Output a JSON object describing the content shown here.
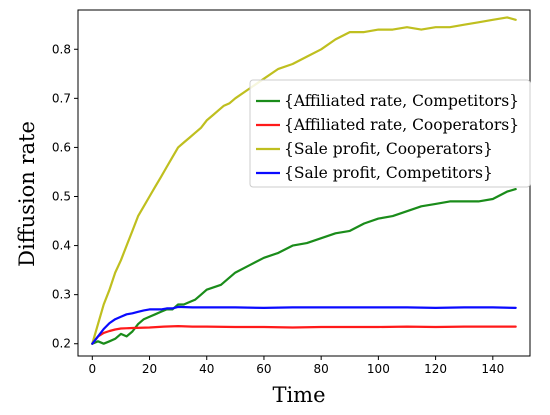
{
  "chart_data": {
    "type": "line",
    "xlabel": "Time",
    "ylabel": "Diffusion rate",
    "xlim": [
      -5,
      153
    ],
    "ylim": [
      0.175,
      0.88
    ],
    "xticks": [
      "0",
      "20",
      "40",
      "60",
      "80",
      "100",
      "120",
      "140"
    ],
    "yticks": [
      "0.2",
      "0.3",
      "0.4",
      "0.5",
      "0.6",
      "0.7",
      "0.8"
    ],
    "grid": false,
    "legend_position": "upper right",
    "series": [
      {
        "name": "{Affiliated rate, Competitors}",
        "color": "#1a8c1a",
        "x": [
          0,
          2,
          4,
          6,
          8,
          10,
          12,
          14,
          16,
          18,
          20,
          22,
          24,
          26,
          28,
          30,
          32,
          34,
          36,
          38,
          40,
          45,
          50,
          55,
          60,
          65,
          70,
          75,
          80,
          85,
          90,
          95,
          100,
          105,
          110,
          115,
          120,
          125,
          130,
          135,
          140,
          145,
          148
        ],
        "y": [
          0.2,
          0.205,
          0.2,
          0.205,
          0.21,
          0.22,
          0.215,
          0.225,
          0.24,
          0.25,
          0.255,
          0.26,
          0.265,
          0.27,
          0.27,
          0.28,
          0.28,
          0.285,
          0.29,
          0.3,
          0.31,
          0.32,
          0.345,
          0.36,
          0.375,
          0.385,
          0.4,
          0.405,
          0.415,
          0.425,
          0.43,
          0.445,
          0.455,
          0.46,
          0.47,
          0.48,
          0.485,
          0.49,
          0.49,
          0.49,
          0.495,
          0.51,
          0.515
        ]
      },
      {
        "name": "{Affiliated rate, Cooperators}",
        "color": "#ff1a1a",
        "x": [
          0,
          2,
          4,
          6,
          8,
          10,
          14,
          20,
          25,
          30,
          35,
          40,
          50,
          60,
          70,
          80,
          90,
          100,
          110,
          120,
          130,
          140,
          148
        ],
        "y": [
          0.2,
          0.215,
          0.222,
          0.226,
          0.229,
          0.231,
          0.232,
          0.233,
          0.235,
          0.236,
          0.235,
          0.235,
          0.234,
          0.234,
          0.233,
          0.234,
          0.234,
          0.234,
          0.235,
          0.234,
          0.235,
          0.235,
          0.235
        ]
      },
      {
        "name": "{Sale profit, Cooperators}",
        "color": "#bfbf1f",
        "x": [
          0,
          2,
          4,
          6,
          8,
          10,
          12,
          14,
          16,
          18,
          20,
          22,
          24,
          26,
          28,
          30,
          32,
          34,
          36,
          38,
          40,
          42,
          44,
          46,
          48,
          50,
          55,
          60,
          65,
          70,
          75,
          80,
          85,
          90,
          95,
          100,
          105,
          110,
          115,
          120,
          125,
          130,
          135,
          140,
          145,
          148
        ],
        "y": [
          0.2,
          0.24,
          0.28,
          0.31,
          0.345,
          0.37,
          0.4,
          0.43,
          0.46,
          0.48,
          0.5,
          0.52,
          0.54,
          0.56,
          0.58,
          0.6,
          0.61,
          0.62,
          0.63,
          0.64,
          0.655,
          0.665,
          0.675,
          0.685,
          0.69,
          0.7,
          0.72,
          0.74,
          0.76,
          0.77,
          0.785,
          0.8,
          0.82,
          0.835,
          0.835,
          0.84,
          0.84,
          0.845,
          0.84,
          0.845,
          0.845,
          0.85,
          0.855,
          0.86,
          0.865,
          0.86
        ]
      },
      {
        "name": "{Sale profit, Competitors}",
        "color": "#0a0aff",
        "x": [
          0,
          2,
          4,
          6,
          8,
          10,
          12,
          14,
          16,
          18,
          20,
          22,
          24,
          26,
          28,
          30,
          35,
          40,
          50,
          60,
          70,
          80,
          90,
          100,
          110,
          120,
          130,
          140,
          148
        ],
        "y": [
          0.2,
          0.215,
          0.23,
          0.242,
          0.25,
          0.255,
          0.26,
          0.262,
          0.265,
          0.268,
          0.27,
          0.27,
          0.27,
          0.272,
          0.272,
          0.275,
          0.274,
          0.274,
          0.274,
          0.273,
          0.274,
          0.274,
          0.274,
          0.274,
          0.274,
          0.273,
          0.274,
          0.274,
          0.273
        ]
      }
    ]
  }
}
